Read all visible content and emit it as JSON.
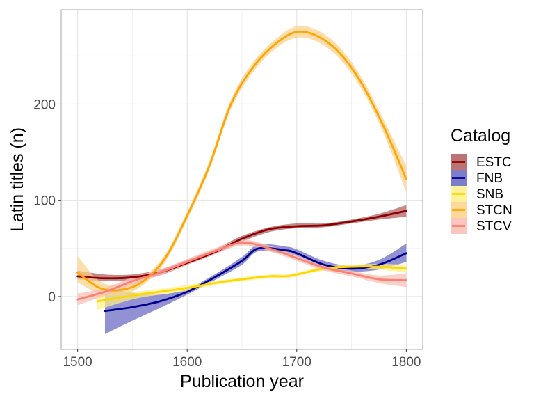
{
  "chart_data": {
    "type": "line",
    "xlabel": "Publication year",
    "ylabel": "Latin titles (n)",
    "xlim": [
      1485,
      1815
    ],
    "ylim": [
      -55,
      298
    ],
    "x_ticks": [
      1500,
      1600,
      1700,
      1800
    ],
    "y_ticks": [
      0,
      100,
      200
    ],
    "grid": true,
    "legend": {
      "title": "Catalog",
      "placement": "right"
    },
    "series": [
      {
        "name": "ESTC",
        "color": "#8b0000",
        "band_color": "#b05a5a",
        "points": [
          [
            1500,
            21
          ],
          [
            1525,
            19
          ],
          [
            1550,
            20
          ],
          [
            1575,
            25
          ],
          [
            1600,
            35
          ],
          [
            1625,
            46
          ],
          [
            1650,
            60
          ],
          [
            1675,
            70
          ],
          [
            1700,
            73
          ],
          [
            1725,
            74
          ],
          [
            1750,
            78
          ],
          [
            1775,
            83
          ],
          [
            1800,
            89
          ]
        ],
        "band": [
          [
            1500,
            18,
            27
          ],
          [
            1525,
            16,
            23
          ],
          [
            1550,
            17,
            23
          ],
          [
            1575,
            22,
            28
          ],
          [
            1600,
            33,
            38
          ],
          [
            1625,
            44,
            49
          ],
          [
            1650,
            57,
            63
          ],
          [
            1675,
            67,
            72
          ],
          [
            1700,
            71,
            76
          ],
          [
            1725,
            72,
            76
          ],
          [
            1750,
            76,
            80
          ],
          [
            1775,
            80,
            86
          ],
          [
            1800,
            83,
            95
          ]
        ]
      },
      {
        "name": "FNB",
        "color": "#00008b",
        "band_color": "#6666c2",
        "points": [
          [
            1525,
            -15
          ],
          [
            1550,
            -11
          ],
          [
            1575,
            -5
          ],
          [
            1600,
            5
          ],
          [
            1625,
            20
          ],
          [
            1650,
            37
          ],
          [
            1665,
            50
          ],
          [
            1690,
            48
          ],
          [
            1700,
            45
          ],
          [
            1725,
            33
          ],
          [
            1750,
            29
          ],
          [
            1775,
            33
          ],
          [
            1800,
            45
          ]
        ],
        "band": [
          [
            1525,
            -39,
            9
          ],
          [
            1550,
            -25,
            4
          ],
          [
            1575,
            -12,
            2
          ],
          [
            1600,
            2,
            8
          ],
          [
            1625,
            17,
            23
          ],
          [
            1650,
            33,
            41
          ],
          [
            1665,
            47,
            54
          ],
          [
            1690,
            44,
            52
          ],
          [
            1700,
            42,
            49
          ],
          [
            1725,
            30,
            37
          ],
          [
            1750,
            26,
            32
          ],
          [
            1775,
            28,
            38
          ],
          [
            1800,
            36,
            55
          ]
        ]
      },
      {
        "name": "SNB",
        "color": "#ffd700",
        "band_color": "#fff088",
        "points": [
          [
            1518,
            -5
          ],
          [
            1550,
            1
          ],
          [
            1575,
            5
          ],
          [
            1600,
            9
          ],
          [
            1625,
            14
          ],
          [
            1650,
            18
          ],
          [
            1675,
            21
          ],
          [
            1690,
            21
          ],
          [
            1700,
            23
          ],
          [
            1725,
            29
          ],
          [
            1750,
            31
          ],
          [
            1775,
            31
          ],
          [
            1800,
            29
          ]
        ],
        "band": [
          [
            1518,
            -14,
            4
          ],
          [
            1550,
            -3,
            5
          ],
          [
            1575,
            2,
            8
          ],
          [
            1600,
            6,
            12
          ],
          [
            1625,
            12,
            16
          ],
          [
            1650,
            16,
            20
          ],
          [
            1675,
            19,
            23
          ],
          [
            1690,
            19,
            23
          ],
          [
            1700,
            21,
            25
          ],
          [
            1725,
            27,
            31
          ],
          [
            1750,
            29,
            33
          ],
          [
            1775,
            28,
            34
          ],
          [
            1800,
            25,
            33
          ]
        ]
      },
      {
        "name": "STCN",
        "color": "#ffa500",
        "band_color": "#fcd189",
        "points": [
          [
            1500,
            25
          ],
          [
            1520,
            9
          ],
          [
            1540,
            7
          ],
          [
            1560,
            16
          ],
          [
            1580,
            40
          ],
          [
            1600,
            84
          ],
          [
            1620,
            135
          ],
          [
            1640,
            200
          ],
          [
            1660,
            238
          ],
          [
            1680,
            262
          ],
          [
            1700,
            275
          ],
          [
            1720,
            270
          ],
          [
            1740,
            252
          ],
          [
            1760,
            220
          ],
          [
            1780,
            175
          ],
          [
            1800,
            122
          ]
        ],
        "band": [
          [
            1500,
            15,
            42
          ],
          [
            1520,
            3,
            16
          ],
          [
            1540,
            2,
            12
          ],
          [
            1560,
            12,
            20
          ],
          [
            1580,
            36,
            44
          ],
          [
            1600,
            80,
            88
          ],
          [
            1620,
            131,
            140
          ],
          [
            1640,
            195,
            205
          ],
          [
            1660,
            233,
            243
          ],
          [
            1680,
            257,
            267
          ],
          [
            1700,
            269,
            281
          ],
          [
            1720,
            264,
            276
          ],
          [
            1740,
            246,
            258
          ],
          [
            1760,
            214,
            226
          ],
          [
            1780,
            168,
            182
          ],
          [
            1800,
            108,
            136
          ]
        ]
      },
      {
        "name": "STCV",
        "color": "#fa8072",
        "band_color": "#fbbcb4",
        "points": [
          [
            1500,
            -3
          ],
          [
            1525,
            5
          ],
          [
            1550,
            16
          ],
          [
            1575,
            25
          ],
          [
            1600,
            36
          ],
          [
            1625,
            47
          ],
          [
            1650,
            56
          ],
          [
            1675,
            50
          ],
          [
            1700,
            40
          ],
          [
            1725,
            30
          ],
          [
            1750,
            24
          ],
          [
            1775,
            18
          ],
          [
            1800,
            17
          ]
        ],
        "band": [
          [
            1500,
            -9,
            3
          ],
          [
            1525,
            1,
            9
          ],
          [
            1550,
            12,
            20
          ],
          [
            1575,
            22,
            28
          ],
          [
            1600,
            33,
            39
          ],
          [
            1625,
            44,
            50
          ],
          [
            1650,
            53,
            59
          ],
          [
            1675,
            47,
            53
          ],
          [
            1700,
            37,
            43
          ],
          [
            1725,
            27,
            33
          ],
          [
            1750,
            21,
            27
          ],
          [
            1775,
            14,
            22
          ],
          [
            1800,
            10,
            24
          ]
        ]
      }
    ]
  }
}
